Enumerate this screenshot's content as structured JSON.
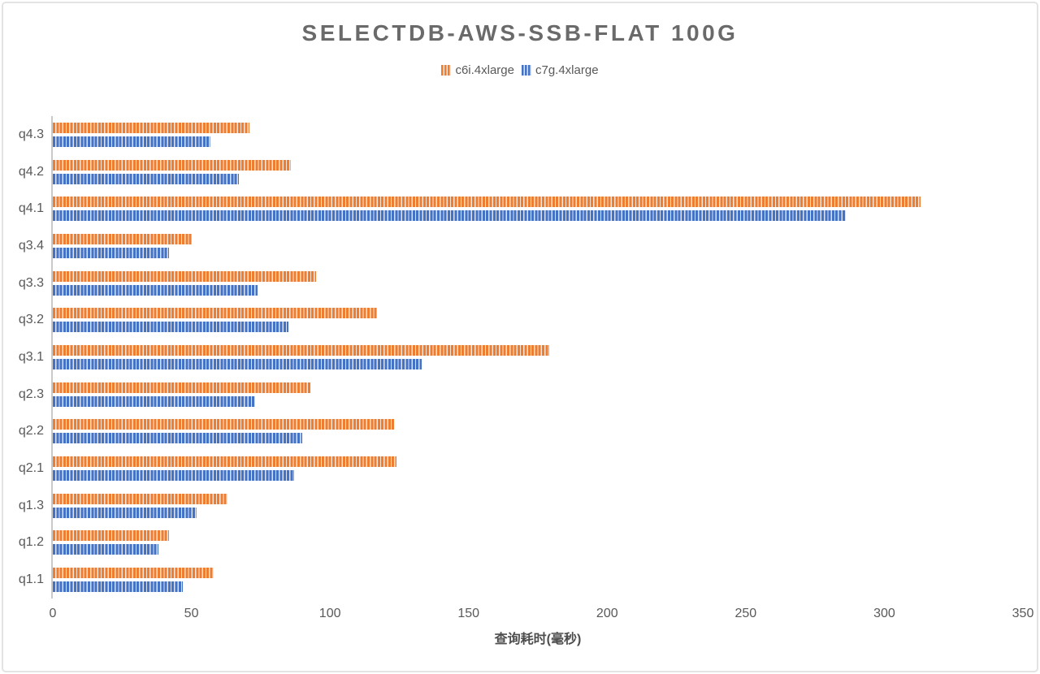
{
  "page": {
    "background_color": "#ffffff",
    "card_border_color": "#e3e3e3"
  },
  "chart_data": {
    "type": "bar",
    "orientation": "horizontal",
    "title": "SELECTDB-AWS-SSB-FLAT 100G",
    "xlabel": "查询耗时(毫秒)",
    "xlim": [
      0,
      350
    ],
    "xticks": [
      0,
      50,
      100,
      150,
      200,
      250,
      300,
      350
    ],
    "grid": false,
    "legend_position": "top-center",
    "bar_fill_pattern": "vertical-stripes",
    "categories": [
      "q4.3",
      "q4.2",
      "q4.1",
      "q3.4",
      "q3.3",
      "q3.2",
      "q3.1",
      "q2.3",
      "q2.2",
      "q2.1",
      "q1.3",
      "q1.2",
      "q1.1"
    ],
    "categories_order_note": "top to bottom",
    "series": [
      {
        "name": "c6i.4xlarge",
        "color": "#ED7D31",
        "stripe_light_color": "#FBE5D6",
        "values": [
          71,
          86,
          313,
          50,
          95,
          117,
          179,
          93,
          123,
          124,
          63,
          42,
          58
        ]
      },
      {
        "name": "c7g.4xlarge",
        "color": "#4472C4",
        "stripe_light_color": "#DAE3F3",
        "values": [
          57,
          67,
          286,
          42,
          74,
          85,
          133,
          73,
          90,
          87,
          52,
          38,
          47
        ]
      }
    ],
    "colors": {
      "title_text": "#6a6a6a",
      "axis_text": "#595959",
      "xlabel_text": "#4d4d4d",
      "axis_line": "#c9c9c9"
    }
  }
}
